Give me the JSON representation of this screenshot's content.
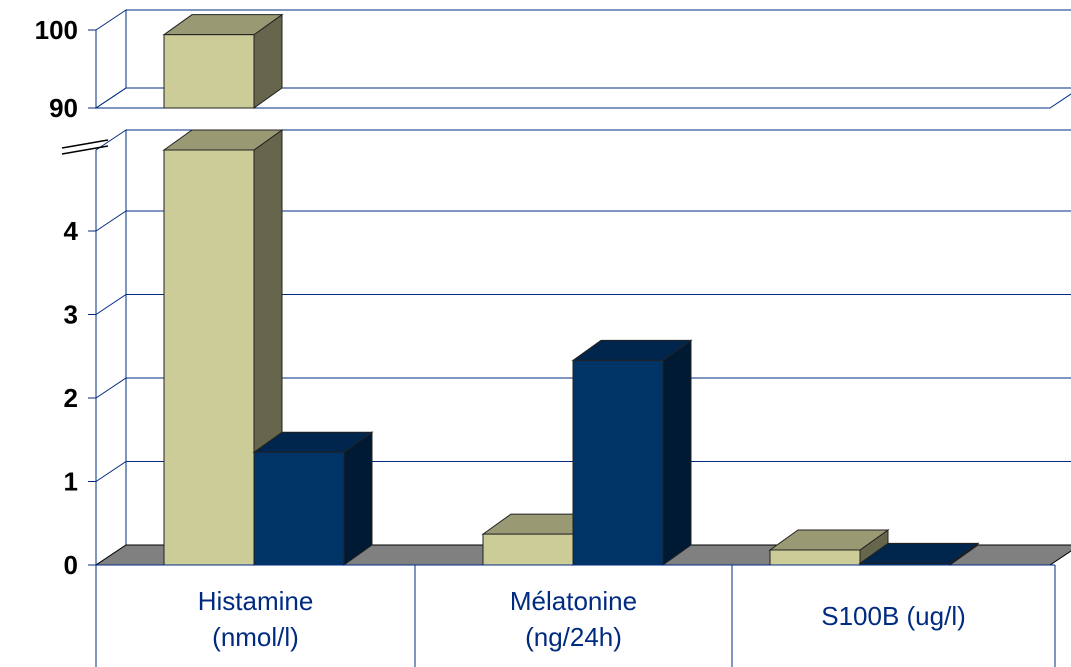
{
  "chart_data": {
    "type": "bar",
    "categories": [
      [
        "Histamine",
        "(nmol/l)"
      ],
      [
        "Mélatonine",
        "(ng/24h)"
      ],
      [
        "S100B (ug/l)"
      ]
    ],
    "series": [
      {
        "values": [
          99.4,
          0.37,
          0.18
        ],
        "color": "#CCCC99"
      },
      {
        "values": [
          1.35,
          2.45,
          0.02
        ],
        "color": "#003366"
      }
    ],
    "y_break": true,
    "lower_range": [
      0,
      4.9
    ],
    "upper_range": [
      90,
      100
    ],
    "lower_ticks": [
      "0",
      "1",
      "2",
      "3",
      "4"
    ],
    "upper_ticks": [
      "90",
      "100"
    ],
    "grid": true,
    "floor_color": "#808080"
  }
}
